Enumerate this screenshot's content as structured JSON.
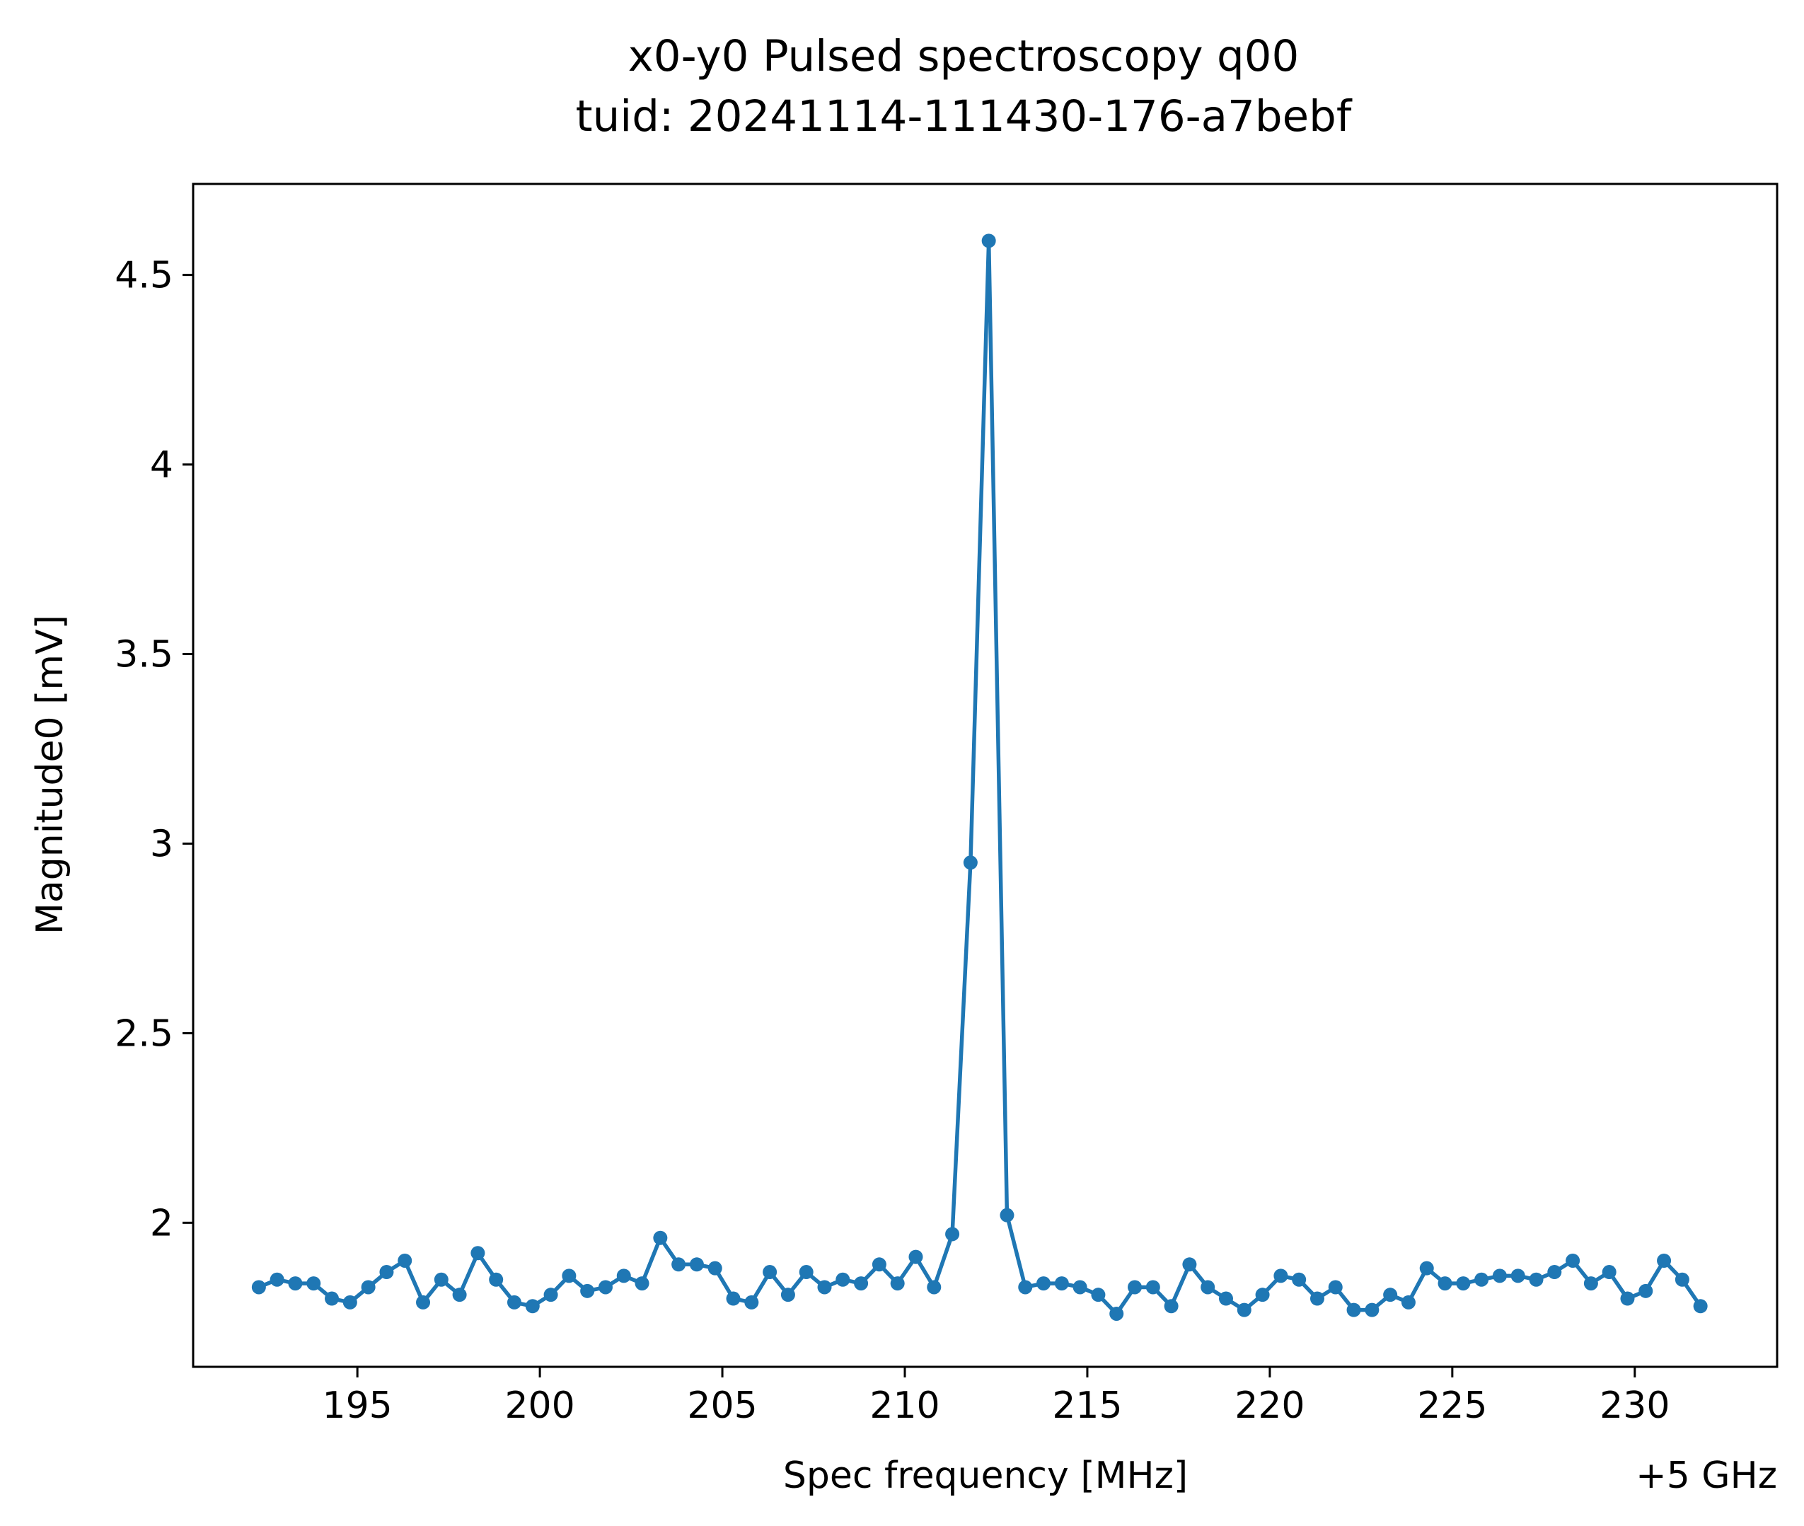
{
  "chart_data": {
    "type": "line",
    "title": "x0-y0 Pulsed spectroscopy q00",
    "subtitle": "tuid: 20241114-111430-176-a7bebf",
    "xlabel": "Spec frequency [MHz]",
    "ylabel": "Magnitude0 [mV]",
    "x_offset_label": "+5 GHz",
    "xlim": [
      190.5,
      233.9
    ],
    "ylim": [
      1.62,
      4.74
    ],
    "grid": false,
    "legend": "none",
    "colors": {
      "series": "#1f77b4",
      "axes": "#000000"
    },
    "x_ticks": [
      {
        "value": 195,
        "label": "195"
      },
      {
        "value": 200,
        "label": "200"
      },
      {
        "value": 205,
        "label": "205"
      },
      {
        "value": 210,
        "label": "210"
      },
      {
        "value": 215,
        "label": "215"
      },
      {
        "value": 220,
        "label": "220"
      },
      {
        "value": 225,
        "label": "225"
      },
      {
        "value": 230,
        "label": "230"
      }
    ],
    "y_ticks": [
      {
        "value": 2.0,
        "label": "2"
      },
      {
        "value": 2.5,
        "label": "2.5"
      },
      {
        "value": 3.0,
        "label": "3"
      },
      {
        "value": 3.5,
        "label": "3.5"
      },
      {
        "value": 4.0,
        "label": "4"
      },
      {
        "value": 4.5,
        "label": "4.5"
      }
    ],
    "series": [
      {
        "marker": "circle",
        "x": [
          192.3,
          192.8,
          193.3,
          193.8,
          194.3,
          194.8,
          195.3,
          195.8,
          196.3,
          196.8,
          197.3,
          197.8,
          198.3,
          198.8,
          199.3,
          199.8,
          200.3,
          200.8,
          201.3,
          201.8,
          202.3,
          202.8,
          203.3,
          203.8,
          204.3,
          204.8,
          205.3,
          205.8,
          206.3,
          206.8,
          207.3,
          207.8,
          208.3,
          208.8,
          209.3,
          209.8,
          210.3,
          210.8,
          211.3,
          211.8,
          212.3,
          212.8,
          213.3,
          213.8,
          214.3,
          214.8,
          215.3,
          215.8,
          216.3,
          216.8,
          217.3,
          217.8,
          218.3,
          218.8,
          219.3,
          219.8,
          220.3,
          220.8,
          221.3,
          221.8,
          222.3,
          222.8,
          223.3,
          223.8,
          224.3,
          224.8,
          225.3,
          225.8,
          226.3,
          226.8,
          227.3,
          227.8,
          228.3,
          228.8,
          229.3,
          229.8,
          230.3,
          230.8,
          231.3,
          231.8
        ],
        "y": [
          1.83,
          1.85,
          1.84,
          1.84,
          1.8,
          1.79,
          1.83,
          1.87,
          1.9,
          1.79,
          1.85,
          1.81,
          1.92,
          1.85,
          1.79,
          1.78,
          1.81,
          1.86,
          1.82,
          1.83,
          1.86,
          1.84,
          1.96,
          1.89,
          1.89,
          1.88,
          1.8,
          1.79,
          1.87,
          1.81,
          1.87,
          1.83,
          1.85,
          1.84,
          1.89,
          1.84,
          1.91,
          1.83,
          1.97,
          2.95,
          4.59,
          2.02,
          1.83,
          1.84,
          1.84,
          1.83,
          1.81,
          1.76,
          1.83,
          1.83,
          1.78,
          1.89,
          1.83,
          1.8,
          1.77,
          1.81,
          1.86,
          1.85,
          1.8,
          1.83,
          1.77,
          1.77,
          1.81,
          1.79,
          1.88,
          1.84,
          1.84,
          1.85,
          1.86,
          1.86,
          1.85,
          1.87,
          1.9,
          1.84,
          1.87,
          1.8,
          1.82,
          1.9,
          1.85,
          1.78
        ]
      }
    ]
  }
}
